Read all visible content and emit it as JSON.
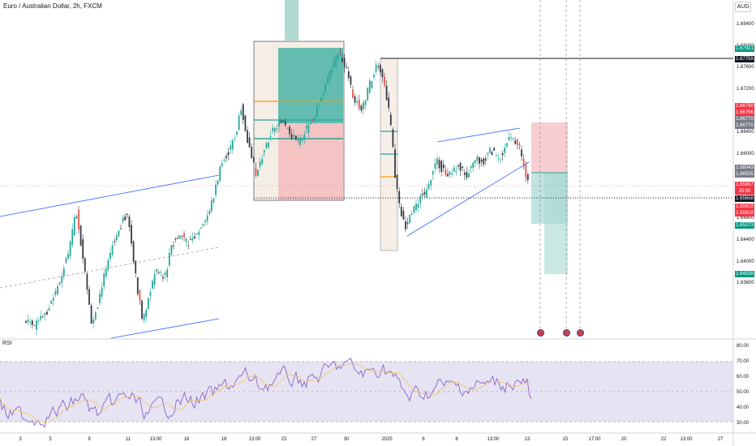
{
  "chart": {
    "title": "Euro / Australian Dollar, 2h, FXCM",
    "currency": "AUD",
    "rsi_label": "RSI",
    "colors": {
      "up": "#26a69a",
      "down": "#ef5350",
      "candle": "#363a45",
      "trend_line": "#2962ff",
      "rsi_line": "#7e57c2",
      "rsi_band": "#e0dcf0",
      "target_zone": "#4caf8f",
      "stop_zone": "#f3b8bd"
    }
  },
  "chart_data": {
    "type": "candlestick",
    "symbol": "EUR/AUD",
    "timeframe": "2h",
    "y_ticks": [
      "1.68400",
      "1.68000",
      "1.67600",
      "1.67200",
      "1.66800",
      "1.66400",
      "1.66000",
      "1.65600",
      "1.65200",
      "1.64800",
      "1.64400",
      "1.64000",
      "1.63600"
    ],
    "rsi_ticks": [
      "80.00",
      "70.00",
      "60.00",
      "50.00",
      "40.00",
      "30.00"
    ],
    "x_ticks": [
      "3",
      "5",
      "9",
      "11",
      "13:00",
      "16",
      "18",
      "13:00",
      "23",
      "27",
      "30",
      "2025",
      "6",
      "8",
      "13:00",
      "13",
      "15",
      "17:00",
      "20",
      "22",
      "13:00",
      "27"
    ],
    "price_badges": [
      {
        "text": "1.67921",
        "color": "#089981"
      },
      {
        "text": "1.67759",
        "color": "#131722"
      },
      {
        "text": "1.66790",
        "color": "#f23645"
      },
      {
        "text": "1.66796",
        "color": "#f23645"
      },
      {
        "text": "1.66770",
        "color": "#787b86"
      },
      {
        "text": "1.66770",
        "color": "#787b86"
      },
      {
        "text": "1.66043",
        "color": "#787b86"
      },
      {
        "text": "1.66035",
        "color": "#787b86"
      },
      {
        "text": "1.65867",
        "color": "#f23645"
      },
      {
        "text": "35:50",
        "color": "#f23645"
      },
      {
        "text": "1.65658",
        "color": "#131722"
      },
      {
        "text": "1.65619",
        "color": "#f23645"
      },
      {
        "text": "1.65619",
        "color": "#f23645"
      },
      {
        "text": "1.65273",
        "color": "#089981"
      },
      {
        "text": "1.64538",
        "color": "#089981"
      }
    ],
    "horizontal_lines": [
      1.67759,
      1.65658
    ],
    "rsi_levels": [
      70,
      30
    ]
  }
}
